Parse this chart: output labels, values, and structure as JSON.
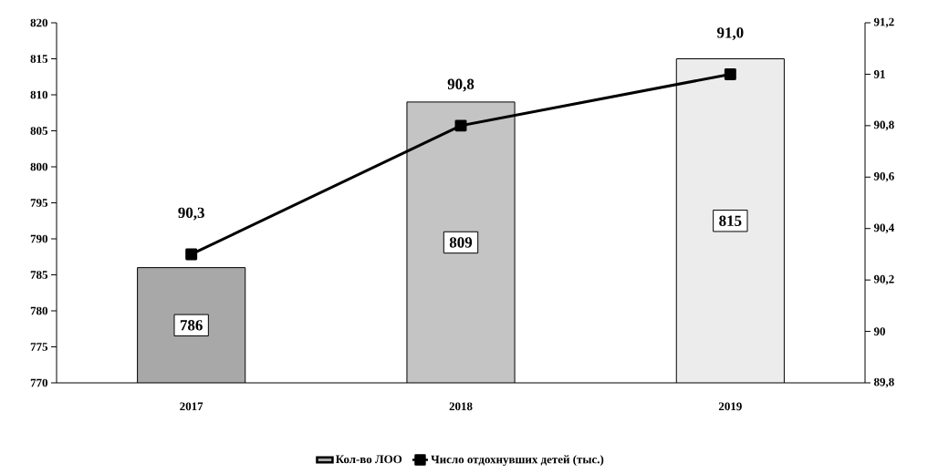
{
  "chart_data": {
    "type": "bar",
    "categories": [
      "2017",
      "2018",
      "2019"
    ],
    "series": [
      {
        "name": "Кол-во ЛОО",
        "colors": [
          "#a8a8a8",
          "#c4c4c4",
          "#ececec"
        ],
        "values": [
          786,
          809,
          815
        ],
        "value_labels": [
          "786",
          "809",
          "815"
        ]
      },
      {
        "name": "Число отдохнувших детей (тыс.)",
        "type": "line",
        "axis": "y2",
        "color": "#000000",
        "marker": "square",
        "values": [
          90.3,
          90.8,
          91.0
        ],
        "value_labels": [
          "90,3",
          "90,8",
          "91,0"
        ]
      }
    ],
    "ylim": [
      770,
      820
    ],
    "yticks": [
      770,
      775,
      780,
      785,
      790,
      795,
      800,
      805,
      810,
      815,
      820
    ],
    "y2lim": [
      89.8,
      91.2
    ],
    "y2ticks": [
      {
        "value": 89.8,
        "label": "89,8"
      },
      {
        "value": 90,
        "label": "90"
      },
      {
        "value": 90.2,
        "label": "90,2"
      },
      {
        "value": 90.4,
        "label": "90,4"
      },
      {
        "value": 90.6,
        "label": "90,6"
      },
      {
        "value": 90.8,
        "label": "90,8"
      },
      {
        "value": 91,
        "label": "91"
      },
      {
        "value": 91.2,
        "label": "91,2"
      }
    ],
    "legend": "bottom"
  }
}
